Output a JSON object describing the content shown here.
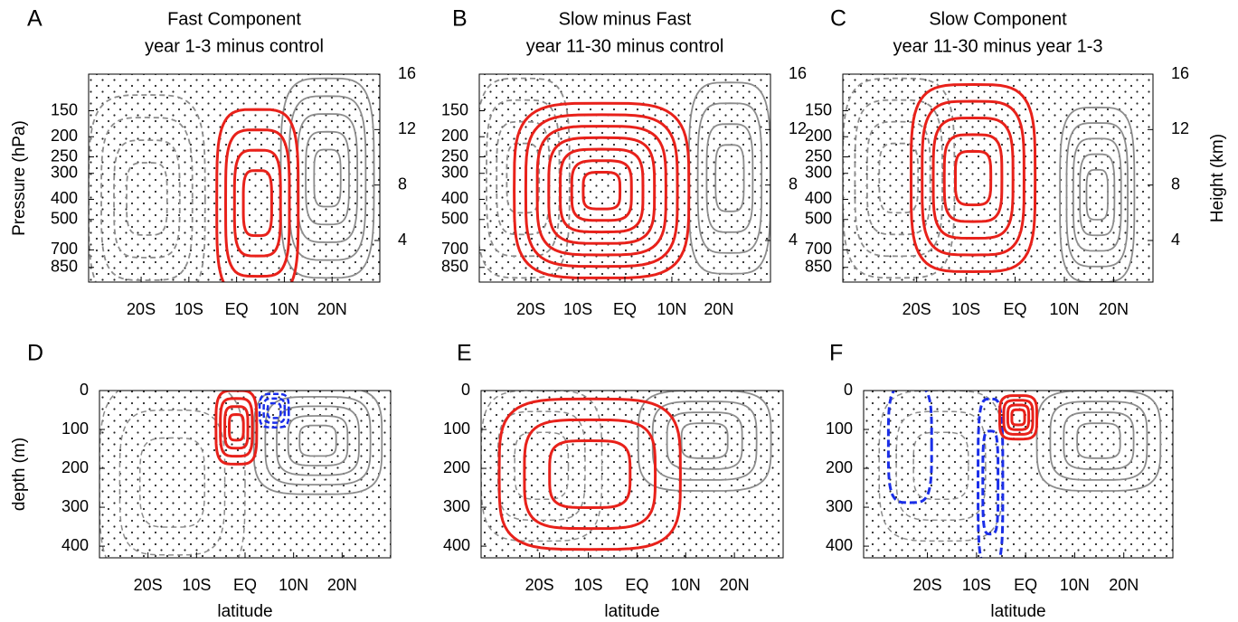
{
  "chart_data": [
    {
      "type": "contour",
      "panel": "A",
      "title": "Fast Component",
      "subtitle": "year 1-3 minus control",
      "ylabel": "Pressure (hPa)",
      "ylog": true,
      "ylim": [
        1000,
        100
      ],
      "yticks": [
        150,
        200,
        250,
        300,
        400,
        500,
        700,
        850
      ],
      "y2lim": [
        1,
        16
      ],
      "y2ticks": [
        16,
        12,
        8,
        4
      ],
      "xlim": [
        -31,
        30
      ],
      "xticks": [
        {
          "value": -20,
          "label": "20S"
        },
        {
          "value": -10,
          "label": "10S"
        },
        {
          "value": 0,
          "label": "EQ"
        },
        {
          "value": 10,
          "label": "10N"
        },
        {
          "value": 20,
          "label": "20N"
        }
      ]
    },
    {
      "type": "contour",
      "panel": "B",
      "title": "Slow minus Fast",
      "subtitle": "year 11-30 minus control",
      "ylog": true,
      "ylim": [
        1000,
        100
      ],
      "yticks": [
        150,
        200,
        250,
        300,
        400,
        500,
        700,
        850
      ],
      "y2lim": [
        1,
        16
      ],
      "y2ticks": [
        16,
        12,
        8,
        4
      ],
      "xlim": [
        -31,
        31
      ],
      "xticks": [
        {
          "value": -20,
          "label": "20S"
        },
        {
          "value": -10,
          "label": "10S"
        },
        {
          "value": 0,
          "label": "EQ"
        },
        {
          "value": 10,
          "label": "10N"
        },
        {
          "value": 20,
          "label": "20N"
        }
      ]
    },
    {
      "type": "contour",
      "panel": "C",
      "title": "Slow Component",
      "subtitle": "year 11-30 minus year 1-3",
      "ylog": true,
      "ylim": [
        1000,
        100
      ],
      "yticks": [
        150,
        200,
        250,
        300,
        400,
        500,
        700,
        850
      ],
      "y2label": "Height (km)",
      "y2lim": [
        1,
        16
      ],
      "y2ticks": [
        16,
        12,
        8,
        4
      ],
      "xlim": [
        -35,
        28
      ],
      "xticks": [
        {
          "value": -20,
          "label": "20S"
        },
        {
          "value": -10,
          "label": "10S"
        },
        {
          "value": 0,
          "label": "EQ"
        },
        {
          "value": 10,
          "label": "10N"
        },
        {
          "value": 20,
          "label": "20N"
        }
      ]
    },
    {
      "type": "contour",
      "panel": "D",
      "ylabel": "depth (m)",
      "xlabel": "latitude",
      "ylim": [
        430,
        0
      ],
      "yticks": [
        0,
        100,
        200,
        300,
        400
      ],
      "xlim": [
        -30,
        30
      ],
      "xticks": [
        {
          "value": -20,
          "label": "20S"
        },
        {
          "value": -10,
          "label": "10S"
        },
        {
          "value": 0,
          "label": "EQ"
        },
        {
          "value": 10,
          "label": "10N"
        },
        {
          "value": 20,
          "label": "20N"
        }
      ]
    },
    {
      "type": "contour",
      "panel": "E",
      "xlabel": "latitude",
      "ylim": [
        430,
        0
      ],
      "yticks": [
        0,
        100,
        200,
        300,
        400
      ],
      "xlim": [
        -32,
        30
      ],
      "xticks": [
        {
          "value": -20,
          "label": "20S"
        },
        {
          "value": -10,
          "label": "10S"
        },
        {
          "value": 0,
          "label": "EQ"
        },
        {
          "value": 10,
          "label": "10N"
        },
        {
          "value": 20,
          "label": "20N"
        }
      ]
    },
    {
      "type": "contour",
      "panel": "F",
      "xlabel": "latitude",
      "ylim": [
        430,
        0
      ],
      "yticks": [
        0,
        100,
        200,
        300,
        400
      ],
      "xlim": [
        -33,
        30
      ],
      "xticks": [
        {
          "value": -20,
          "label": "20S"
        },
        {
          "value": -10,
          "label": "10S"
        },
        {
          "value": 0,
          "label": "EQ"
        },
        {
          "value": 10,
          "label": "10N"
        },
        {
          "value": 20,
          "label": "20N"
        }
      ]
    }
  ]
}
